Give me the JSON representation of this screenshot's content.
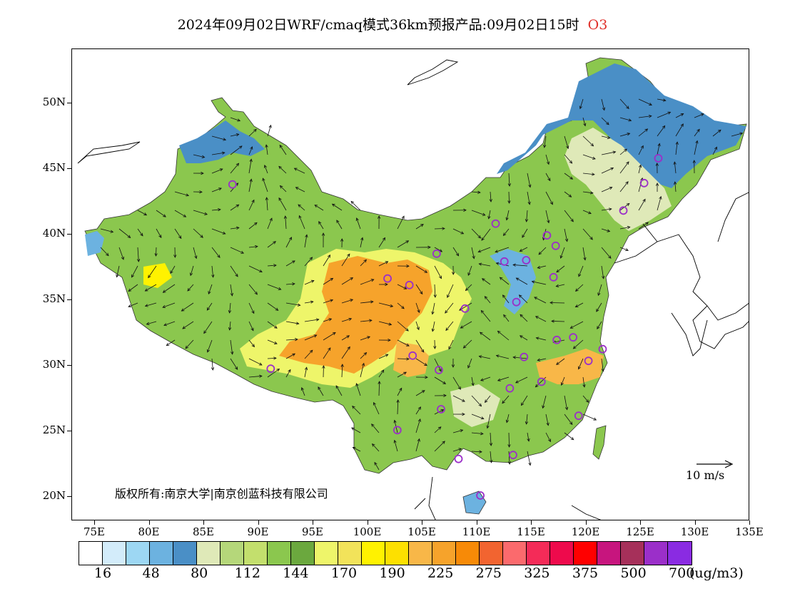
{
  "title": {
    "main": "2024年09月02日WRF/cmaq模式36km预报产品:09月02日15时",
    "species": "O3",
    "species_color": "#e0302a"
  },
  "map": {
    "y_axis_labels": [
      "50N",
      "45N",
      "40N",
      "35N",
      "30N",
      "25N",
      "20N"
    ],
    "x_axis_labels": [
      "75E",
      "80E",
      "85E",
      "90E",
      "95E",
      "100E",
      "105E",
      "110E",
      "115E",
      "120E",
      "125E",
      "130E",
      "135E"
    ],
    "copyright_text": "版权所有:南京大学|南京创蓝科技有限公司",
    "wind_legend_label": "10 m/s"
  },
  "colorbar": {
    "colors": [
      "#ffffff",
      "#d3ecfa",
      "#9dd7f3",
      "#6cb2e0",
      "#4a8fc6",
      "#dfe9b8",
      "#b5d77a",
      "#c3df6d",
      "#8bc74e",
      "#6ba83e",
      "#eef56a",
      "#f2e35a",
      "#fff200",
      "#fde000",
      "#f8b748",
      "#f6a32b",
      "#f78a07",
      "#f26430",
      "#fb6a6d",
      "#f42b58",
      "#ee0a4c",
      "#ff0000",
      "#c7157e",
      "#a6305a",
      "#9b2fc9",
      "#8a2be2"
    ],
    "labels": [
      "16",
      "48",
      "80",
      "112",
      "144",
      "170",
      "190",
      "225",
      "275",
      "325",
      "375",
      "500",
      "700"
    ],
    "unit": "(ug/m3)"
  },
  "stations": [
    {
      "lon": 87.6,
      "lat": 43.8
    },
    {
      "lon": 91.1,
      "lat": 29.7
    },
    {
      "lon": 101.8,
      "lat": 36.6
    },
    {
      "lon": 103.8,
      "lat": 36.1
    },
    {
      "lon": 106.3,
      "lat": 38.5
    },
    {
      "lon": 111.7,
      "lat": 40.8
    },
    {
      "lon": 112.5,
      "lat": 37.9
    },
    {
      "lon": 114.5,
      "lat": 38.0
    },
    {
      "lon": 116.4,
      "lat": 39.9
    },
    {
      "lon": 117.2,
      "lat": 39.1
    },
    {
      "lon": 117.0,
      "lat": 36.7
    },
    {
      "lon": 113.6,
      "lat": 34.8
    },
    {
      "lon": 108.9,
      "lat": 34.3
    },
    {
      "lon": 104.1,
      "lat": 30.7
    },
    {
      "lon": 106.5,
      "lat": 29.6
    },
    {
      "lon": 106.7,
      "lat": 26.6
    },
    {
      "lon": 102.7,
      "lat": 25.0
    },
    {
      "lon": 108.3,
      "lat": 22.8
    },
    {
      "lon": 110.3,
      "lat": 20.0
    },
    {
      "lon": 113.3,
      "lat": 23.1
    },
    {
      "lon": 113.0,
      "lat": 28.2
    },
    {
      "lon": 114.3,
      "lat": 30.6
    },
    {
      "lon": 115.9,
      "lat": 28.7
    },
    {
      "lon": 117.3,
      "lat": 31.9
    },
    {
      "lon": 118.8,
      "lat": 32.1
    },
    {
      "lon": 120.2,
      "lat": 30.3
    },
    {
      "lon": 121.5,
      "lat": 31.2
    },
    {
      "lon": 119.3,
      "lat": 26.1
    },
    {
      "lon": 123.4,
      "lat": 41.8
    },
    {
      "lon": 125.3,
      "lat": 43.9
    },
    {
      "lon": 126.6,
      "lat": 45.8
    }
  ]
}
